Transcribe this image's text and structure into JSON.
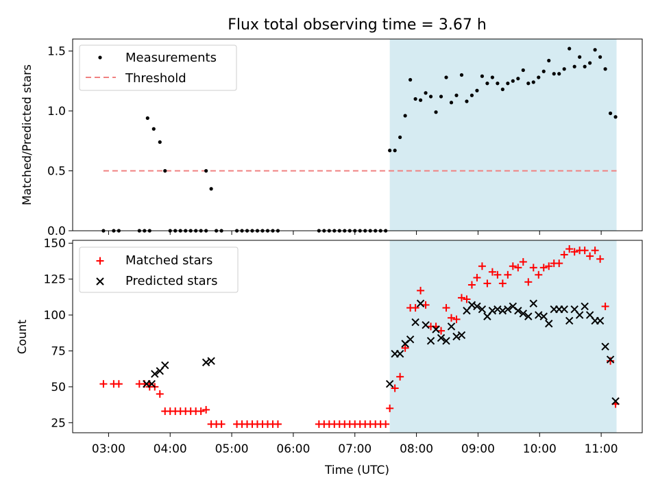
{
  "figure": {
    "title": "Flux total observing time = 3.67 h",
    "xlabel": "Time (UTC)",
    "x_tick_labels": [
      "03:00",
      "04:00",
      "05:00",
      "06:00",
      "07:00",
      "08:00",
      "09:00",
      "10:00",
      "11:00"
    ]
  },
  "colors": {
    "highlight": "#add8e6",
    "measurement": "#000000",
    "threshold": "#f08080",
    "matched": "#ff0000",
    "predicted": "#000000"
  },
  "chart_data": [
    {
      "type": "scatter",
      "panel": "top",
      "ylabel": "Matched/Predicted stars",
      "xlim": [
        "02:25",
        "11:40"
      ],
      "ylim": [
        0,
        1.6
      ],
      "y_ticks": [
        "0.0",
        "0.5",
        "1.0",
        "1.5"
      ],
      "legend": {
        "placement": "upper-left",
        "entries": [
          "Measurements",
          "Threshold"
        ]
      },
      "highlight_span": [
        "07:34",
        "11:15"
      ],
      "threshold": {
        "name": "Threshold",
        "y": 0.5,
        "x": [
          "02:55",
          "11:15"
        ]
      },
      "series": [
        {
          "name": "Measurements",
          "points": [
            [
              "02:55",
              0
            ],
            [
              "03:05",
              0
            ],
            [
              "03:10",
              0
            ],
            [
              "03:30",
              0
            ],
            [
              "03:35",
              0
            ],
            [
              "03:40",
              0
            ],
            [
              "03:38",
              0.94
            ],
            [
              "03:44",
              0.85
            ],
            [
              "03:50",
              0.74
            ],
            [
              "03:55",
              0.5
            ],
            [
              "04:00",
              0
            ],
            [
              "04:05",
              0
            ],
            [
              "04:10",
              0
            ],
            [
              "04:15",
              0
            ],
            [
              "04:20",
              0
            ],
            [
              "04:25",
              0
            ],
            [
              "04:30",
              0
            ],
            [
              "04:35",
              0
            ],
            [
              "04:35",
              0.5
            ],
            [
              "04:40",
              0.35
            ],
            [
              "04:45",
              0
            ],
            [
              "04:50",
              0
            ],
            [
              "05:05",
              0
            ],
            [
              "05:10",
              0
            ],
            [
              "05:15",
              0
            ],
            [
              "05:20",
              0
            ],
            [
              "05:25",
              0
            ],
            [
              "05:30",
              0
            ],
            [
              "05:35",
              0
            ],
            [
              "05:40",
              0
            ],
            [
              "05:45",
              0
            ],
            [
              "06:25",
              0
            ],
            [
              "06:30",
              0
            ],
            [
              "06:35",
              0
            ],
            [
              "06:40",
              0
            ],
            [
              "06:45",
              0
            ],
            [
              "06:50",
              0
            ],
            [
              "06:55",
              0
            ],
            [
              "07:00",
              0
            ],
            [
              "07:05",
              0
            ],
            [
              "07:10",
              0
            ],
            [
              "07:15",
              0
            ],
            [
              "07:20",
              0
            ],
            [
              "07:25",
              0
            ],
            [
              "07:30",
              0
            ],
            [
              "07:34",
              0.67
            ],
            [
              "07:39",
              0.67
            ],
            [
              "07:44",
              0.78
            ],
            [
              "07:49",
              0.96
            ],
            [
              "07:54",
              1.26
            ],
            [
              "07:59",
              1.1
            ],
            [
              "08:04",
              1.09
            ],
            [
              "08:09",
              1.15
            ],
            [
              "08:14",
              1.12
            ],
            [
              "08:19",
              0.99
            ],
            [
              "08:24",
              1.12
            ],
            [
              "08:29",
              1.28
            ],
            [
              "08:34",
              1.07
            ],
            [
              "08:39",
              1.13
            ],
            [
              "08:44",
              1.3
            ],
            [
              "08:49",
              1.08
            ],
            [
              "08:54",
              1.13
            ],
            [
              "08:59",
              1.17
            ],
            [
              "09:04",
              1.29
            ],
            [
              "09:09",
              1.23
            ],
            [
              "09:14",
              1.28
            ],
            [
              "09:19",
              1.23
            ],
            [
              "09:24",
              1.18
            ],
            [
              "09:29",
              1.23
            ],
            [
              "09:34",
              1.25
            ],
            [
              "09:39",
              1.27
            ],
            [
              "09:44",
              1.34
            ],
            [
              "09:49",
              1.23
            ],
            [
              "09:54",
              1.24
            ],
            [
              "09:59",
              1.28
            ],
            [
              "10:04",
              1.33
            ],
            [
              "10:09",
              1.42
            ],
            [
              "10:14",
              1.31
            ],
            [
              "10:19",
              1.31
            ],
            [
              "10:24",
              1.35
            ],
            [
              "10:29",
              1.52
            ],
            [
              "10:34",
              1.37
            ],
            [
              "10:39",
              1.45
            ],
            [
              "10:44",
              1.37
            ],
            [
              "10:49",
              1.4
            ],
            [
              "10:54",
              1.51
            ],
            [
              "10:59",
              1.45
            ],
            [
              "11:04",
              1.35
            ],
            [
              "11:09",
              0.98
            ],
            [
              "11:14",
              0.95
            ]
          ]
        }
      ]
    },
    {
      "type": "scatter",
      "panel": "bottom",
      "ylabel": "Count",
      "xlim": [
        "02:25",
        "11:40"
      ],
      "ylim": [
        18,
        152
      ],
      "y_ticks": [
        "25",
        "50",
        "75",
        "100",
        "125",
        "150"
      ],
      "legend": {
        "placement": "upper-left",
        "entries": [
          "Matched stars",
          "Predicted stars"
        ]
      },
      "highlight_span": [
        "07:34",
        "11:15"
      ],
      "series": [
        {
          "name": "Matched stars",
          "points": [
            [
              "02:55",
              52
            ],
            [
              "03:05",
              52
            ],
            [
              "03:10",
              52
            ],
            [
              "03:30",
              52
            ],
            [
              "03:35",
              52
            ],
            [
              "03:40",
              52
            ],
            [
              "03:40",
              50
            ],
            [
              "03:45",
              50
            ],
            [
              "03:50",
              45
            ],
            [
              "03:55",
              33
            ],
            [
              "04:00",
              33
            ],
            [
              "04:05",
              33
            ],
            [
              "04:10",
              33
            ],
            [
              "04:15",
              33
            ],
            [
              "04:20",
              33
            ],
            [
              "04:25",
              33
            ],
            [
              "04:30",
              33
            ],
            [
              "04:35",
              34
            ],
            [
              "04:40",
              24
            ],
            [
              "04:45",
              24
            ],
            [
              "04:50",
              24
            ],
            [
              "05:05",
              24
            ],
            [
              "05:10",
              24
            ],
            [
              "05:15",
              24
            ],
            [
              "05:20",
              24
            ],
            [
              "05:25",
              24
            ],
            [
              "05:30",
              24
            ],
            [
              "05:35",
              24
            ],
            [
              "05:40",
              24
            ],
            [
              "05:45",
              24
            ],
            [
              "06:25",
              24
            ],
            [
              "06:30",
              24
            ],
            [
              "06:35",
              24
            ],
            [
              "06:40",
              24
            ],
            [
              "06:45",
              24
            ],
            [
              "06:50",
              24
            ],
            [
              "06:55",
              24
            ],
            [
              "07:00",
              24
            ],
            [
              "07:05",
              24
            ],
            [
              "07:10",
              24
            ],
            [
              "07:15",
              24
            ],
            [
              "07:20",
              24
            ],
            [
              "07:25",
              24
            ],
            [
              "07:30",
              24
            ],
            [
              "07:34",
              35
            ],
            [
              "07:39",
              49
            ],
            [
              "07:44",
              57
            ],
            [
              "07:49",
              77
            ],
            [
              "07:54",
              105
            ],
            [
              "07:59",
              105
            ],
            [
              "08:04",
              117
            ],
            [
              "08:09",
              107
            ],
            [
              "08:14",
              92
            ],
            [
              "08:19",
              92
            ],
            [
              "08:24",
              89
            ],
            [
              "08:29",
              105
            ],
            [
              "08:34",
              98
            ],
            [
              "08:39",
              97
            ],
            [
              "08:44",
              112
            ],
            [
              "08:49",
              111
            ],
            [
              "08:54",
              121
            ],
            [
              "08:59",
              126
            ],
            [
              "09:04",
              134
            ],
            [
              "09:09",
              122
            ],
            [
              "09:14",
              130
            ],
            [
              "09:19",
              128
            ],
            [
              "09:24",
              122
            ],
            [
              "09:29",
              128
            ],
            [
              "09:34",
              134
            ],
            [
              "09:39",
              133
            ],
            [
              "09:44",
              137
            ],
            [
              "09:49",
              123
            ],
            [
              "09:54",
              133
            ],
            [
              "09:59",
              128
            ],
            [
              "10:04",
              133
            ],
            [
              "10:09",
              134
            ],
            [
              "10:14",
              136
            ],
            [
              "10:19",
              136
            ],
            [
              "10:24",
              142
            ],
            [
              "10:29",
              146
            ],
            [
              "10:34",
              144
            ],
            [
              "10:39",
              145
            ],
            [
              "10:44",
              145
            ],
            [
              "10:49",
              141
            ],
            [
              "10:54",
              145
            ],
            [
              "10:59",
              139
            ],
            [
              "11:04",
              106
            ],
            [
              "11:09",
              68
            ],
            [
              "11:14",
              38
            ]
          ]
        },
        {
          "name": "Predicted stars",
          "points": [
            [
              "03:37",
              52
            ],
            [
              "03:42",
              52
            ],
            [
              "03:45",
              59
            ],
            [
              "03:50",
              61
            ],
            [
              "03:55",
              65
            ],
            [
              "04:35",
              67
            ],
            [
              "04:40",
              68
            ],
            [
              "07:34",
              52
            ],
            [
              "07:39",
              73
            ],
            [
              "07:44",
              73
            ],
            [
              "07:49",
              80
            ],
            [
              "07:54",
              83
            ],
            [
              "07:59",
              95
            ],
            [
              "08:04",
              108
            ],
            [
              "08:09",
              93
            ],
            [
              "08:14",
              82
            ],
            [
              "08:19",
              90
            ],
            [
              "08:24",
              84
            ],
            [
              "08:29",
              82
            ],
            [
              "08:34",
              92
            ],
            [
              "08:39",
              85
            ],
            [
              "08:44",
              86
            ],
            [
              "08:49",
              103
            ],
            [
              "08:54",
              107
            ],
            [
              "08:59",
              106
            ],
            [
              "09:04",
              104
            ],
            [
              "09:09",
              99
            ],
            [
              "09:14",
              103
            ],
            [
              "09:19",
              104
            ],
            [
              "09:24",
              103
            ],
            [
              "09:29",
              104
            ],
            [
              "09:34",
              106
            ],
            [
              "09:39",
              103
            ],
            [
              "09:44",
              101
            ],
            [
              "09:49",
              99
            ],
            [
              "09:54",
              108
            ],
            [
              "09:59",
              100
            ],
            [
              "10:04",
              99
            ],
            [
              "10:09",
              94
            ],
            [
              "10:14",
              104
            ],
            [
              "10:19",
              104
            ],
            [
              "10:24",
              104
            ],
            [
              "10:29",
              96
            ],
            [
              "10:34",
              104
            ],
            [
              "10:39",
              100
            ],
            [
              "10:44",
              106
            ],
            [
              "10:49",
              100
            ],
            [
              "10:54",
              96
            ],
            [
              "10:59",
              96
            ],
            [
              "11:04",
              78
            ],
            [
              "11:09",
              69
            ],
            [
              "11:14",
              40
            ]
          ]
        }
      ]
    }
  ]
}
